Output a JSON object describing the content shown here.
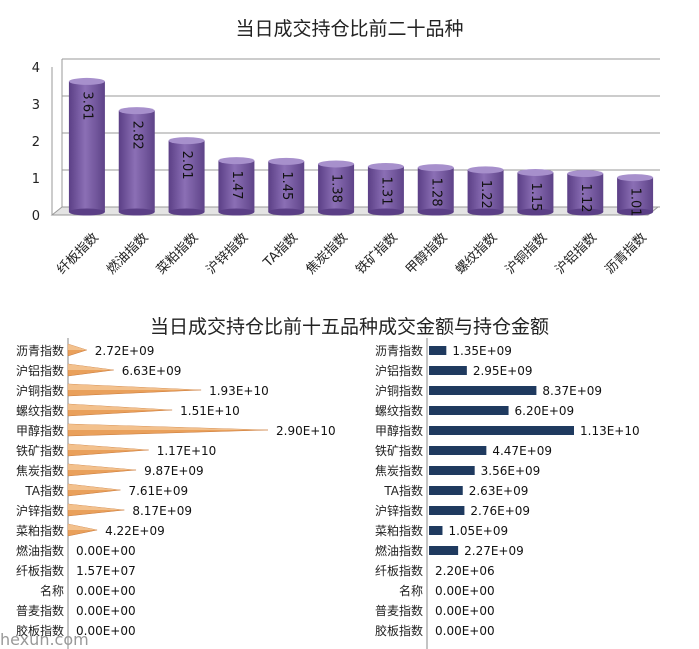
{
  "chart_data": [
    {
      "type": "bar",
      "title": "当日成交持仓比前二十品种",
      "categories": [
        "纤板指数",
        "燃油指数",
        "菜粕指数",
        "沪锌指数",
        "TA指数",
        "焦炭指数",
        "铁矿指数",
        "甲醇指数",
        "螺纹指数",
        "沪铜指数",
        "沪铝指数",
        "沥青指数"
      ],
      "values": [
        3.61,
        2.82,
        2.01,
        1.47,
        1.45,
        1.38,
        1.31,
        1.28,
        1.22,
        1.15,
        1.12,
        1.01
      ],
      "value_labels": [
        "3.61",
        "2.82",
        "2.01",
        "1.47",
        "1.45",
        "1.38",
        "1.31",
        "1.28",
        "1.22",
        "1.15",
        "1.12",
        "1.01"
      ],
      "ylim": [
        0,
        4
      ],
      "yticks": [
        "0",
        "1",
        "2",
        "3",
        "4"
      ],
      "bar_color": "#8B6FB5"
    },
    {
      "type": "bar",
      "title": "当日成交持仓比前十五品种成交金额与持仓金额",
      "categories": [
        "沥青指数",
        "沪铝指数",
        "沪铜指数",
        "螺纹指数",
        "甲醇指数",
        "铁矿指数",
        "焦炭指数",
        "TA指数",
        "沪锌指数",
        "菜粕指数",
        "燃油指数",
        "纤板指数",
        "名称",
        "普麦指数",
        "胶板指数"
      ],
      "series": [
        {
          "name": "成交金额",
          "values": [
            2720000000.0,
            6630000000.0,
            19300000000.0,
            15100000000.0,
            29000000000.0,
            11700000000.0,
            9870000000.0,
            7610000000.0,
            8170000000.0,
            4220000000.0,
            0,
            15700000.0,
            0,
            0,
            0
          ],
          "labels": [
            "2.72E+09",
            "6.63E+09",
            "1.93E+10",
            "1.51E+10",
            "2.90E+10",
            "1.17E+10",
            "9.87E+09",
            "7.61E+09",
            "8.17E+09",
            "4.22E+09",
            "0.00E+00",
            "1.57E+07",
            "0.00E+00",
            "0.00E+00",
            "0.00E+00"
          ],
          "color": "#E9A05B"
        },
        {
          "name": "持仓金额",
          "values": [
            1350000000.0,
            2950000000.0,
            8370000000.0,
            6200000000.0,
            11300000000.0,
            4470000000.0,
            3560000000.0,
            2630000000.0,
            2760000000.0,
            1050000000.0,
            2270000000.0,
            2200000.0,
            0,
            0,
            0
          ],
          "labels": [
            "1.35E+09",
            "2.95E+09",
            "8.37E+09",
            "6.20E+09",
            "1.13E+10",
            "4.47E+09",
            "3.56E+09",
            "2.63E+09",
            "2.76E+09",
            "1.05E+09",
            "2.27E+09",
            "2.20E+06",
            "0.00E+00",
            "0.00E+00",
            "0.00E+00"
          ],
          "color": "#1F3A5F"
        }
      ]
    }
  ],
  "watermark_text": "hexun.com",
  "colors": {
    "axis": "#888888",
    "grid": "#999999",
    "text": "#222222"
  }
}
